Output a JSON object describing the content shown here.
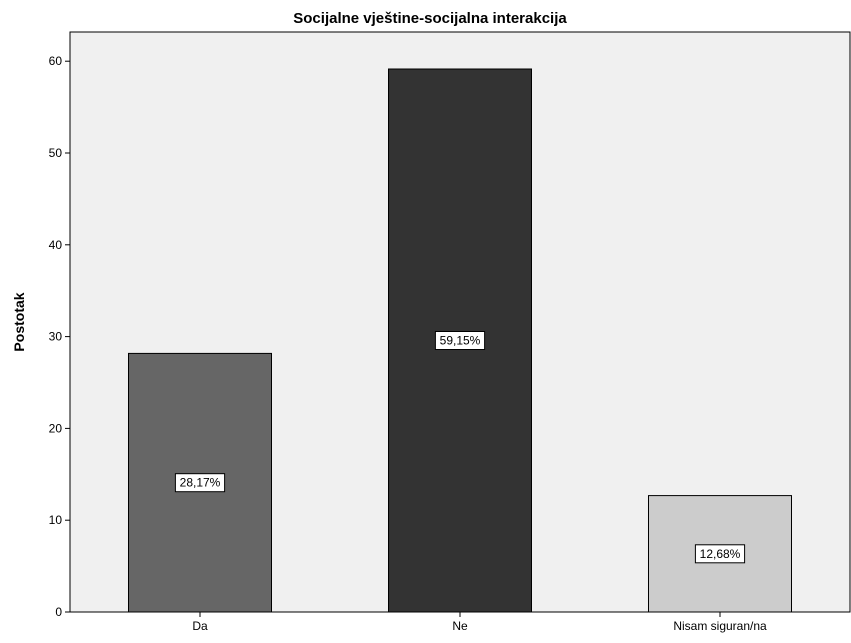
{
  "chart_data": {
    "type": "bar",
    "title": "Socijalne vještine-socijalna interakcija",
    "xlabel": "",
    "ylabel": "Postotak",
    "categories": [
      "Da",
      "Ne",
      "Nisam siguran/na"
    ],
    "values": [
      28.17,
      59.15,
      12.68
    ],
    "data_labels": [
      "28,17%",
      "59,15%",
      "12,68%"
    ],
    "bar_colors": [
      "#666666",
      "#333333",
      "#cccccc"
    ],
    "ylim": [
      0,
      63
    ],
    "yticks": [
      0,
      10,
      20,
      30,
      40,
      50,
      60
    ],
    "plot_background": "#f0f0f0",
    "grid": false,
    "legend": "none"
  }
}
